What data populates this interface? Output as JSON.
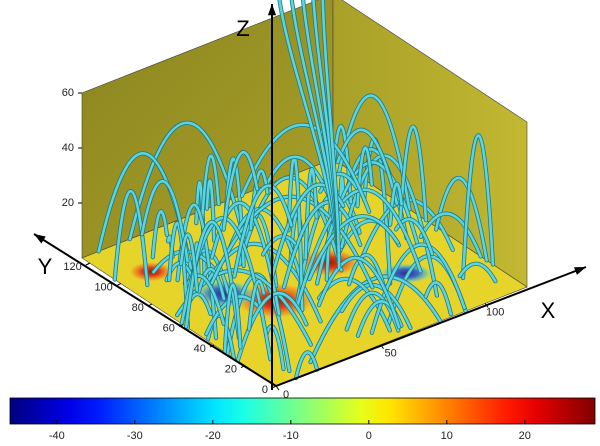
{
  "chart_data": {
    "type": "field-3d",
    "xlabel": "X",
    "ylabel": "Y",
    "zlabel": "Z",
    "xlim": [
      0,
      120
    ],
    "xticks": [
      0,
      50,
      100
    ],
    "ylim": [
      0,
      125
    ],
    "yticks": [
      0,
      20,
      40,
      60,
      80,
      100,
      120
    ],
    "zlim": [
      0,
      60
    ],
    "zticks": [
      20,
      40,
      60
    ],
    "clim": [
      -46,
      29
    ],
    "cticks": [
      -40,
      -30,
      -20,
      -10,
      0,
      10,
      20
    ],
    "line_color": "#5fd4dc"
  }
}
